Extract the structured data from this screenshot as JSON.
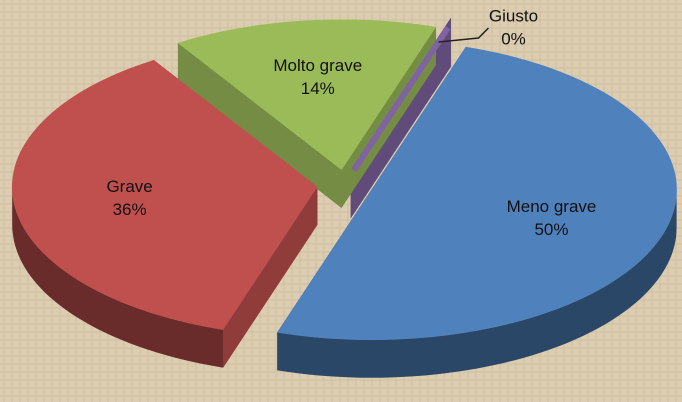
{
  "chart_data": {
    "type": "pie3d",
    "categories": [
      "Giusto",
      "Meno grave",
      "Grave",
      "Molto grave"
    ],
    "values": [
      0,
      50,
      36,
      14
    ],
    "value_labels": [
      "0%",
      "50%",
      "36%",
      "14%"
    ],
    "colors": [
      "#8064a2",
      "#4f81bd",
      "#c0504d",
      "#9bbb59"
    ]
  }
}
